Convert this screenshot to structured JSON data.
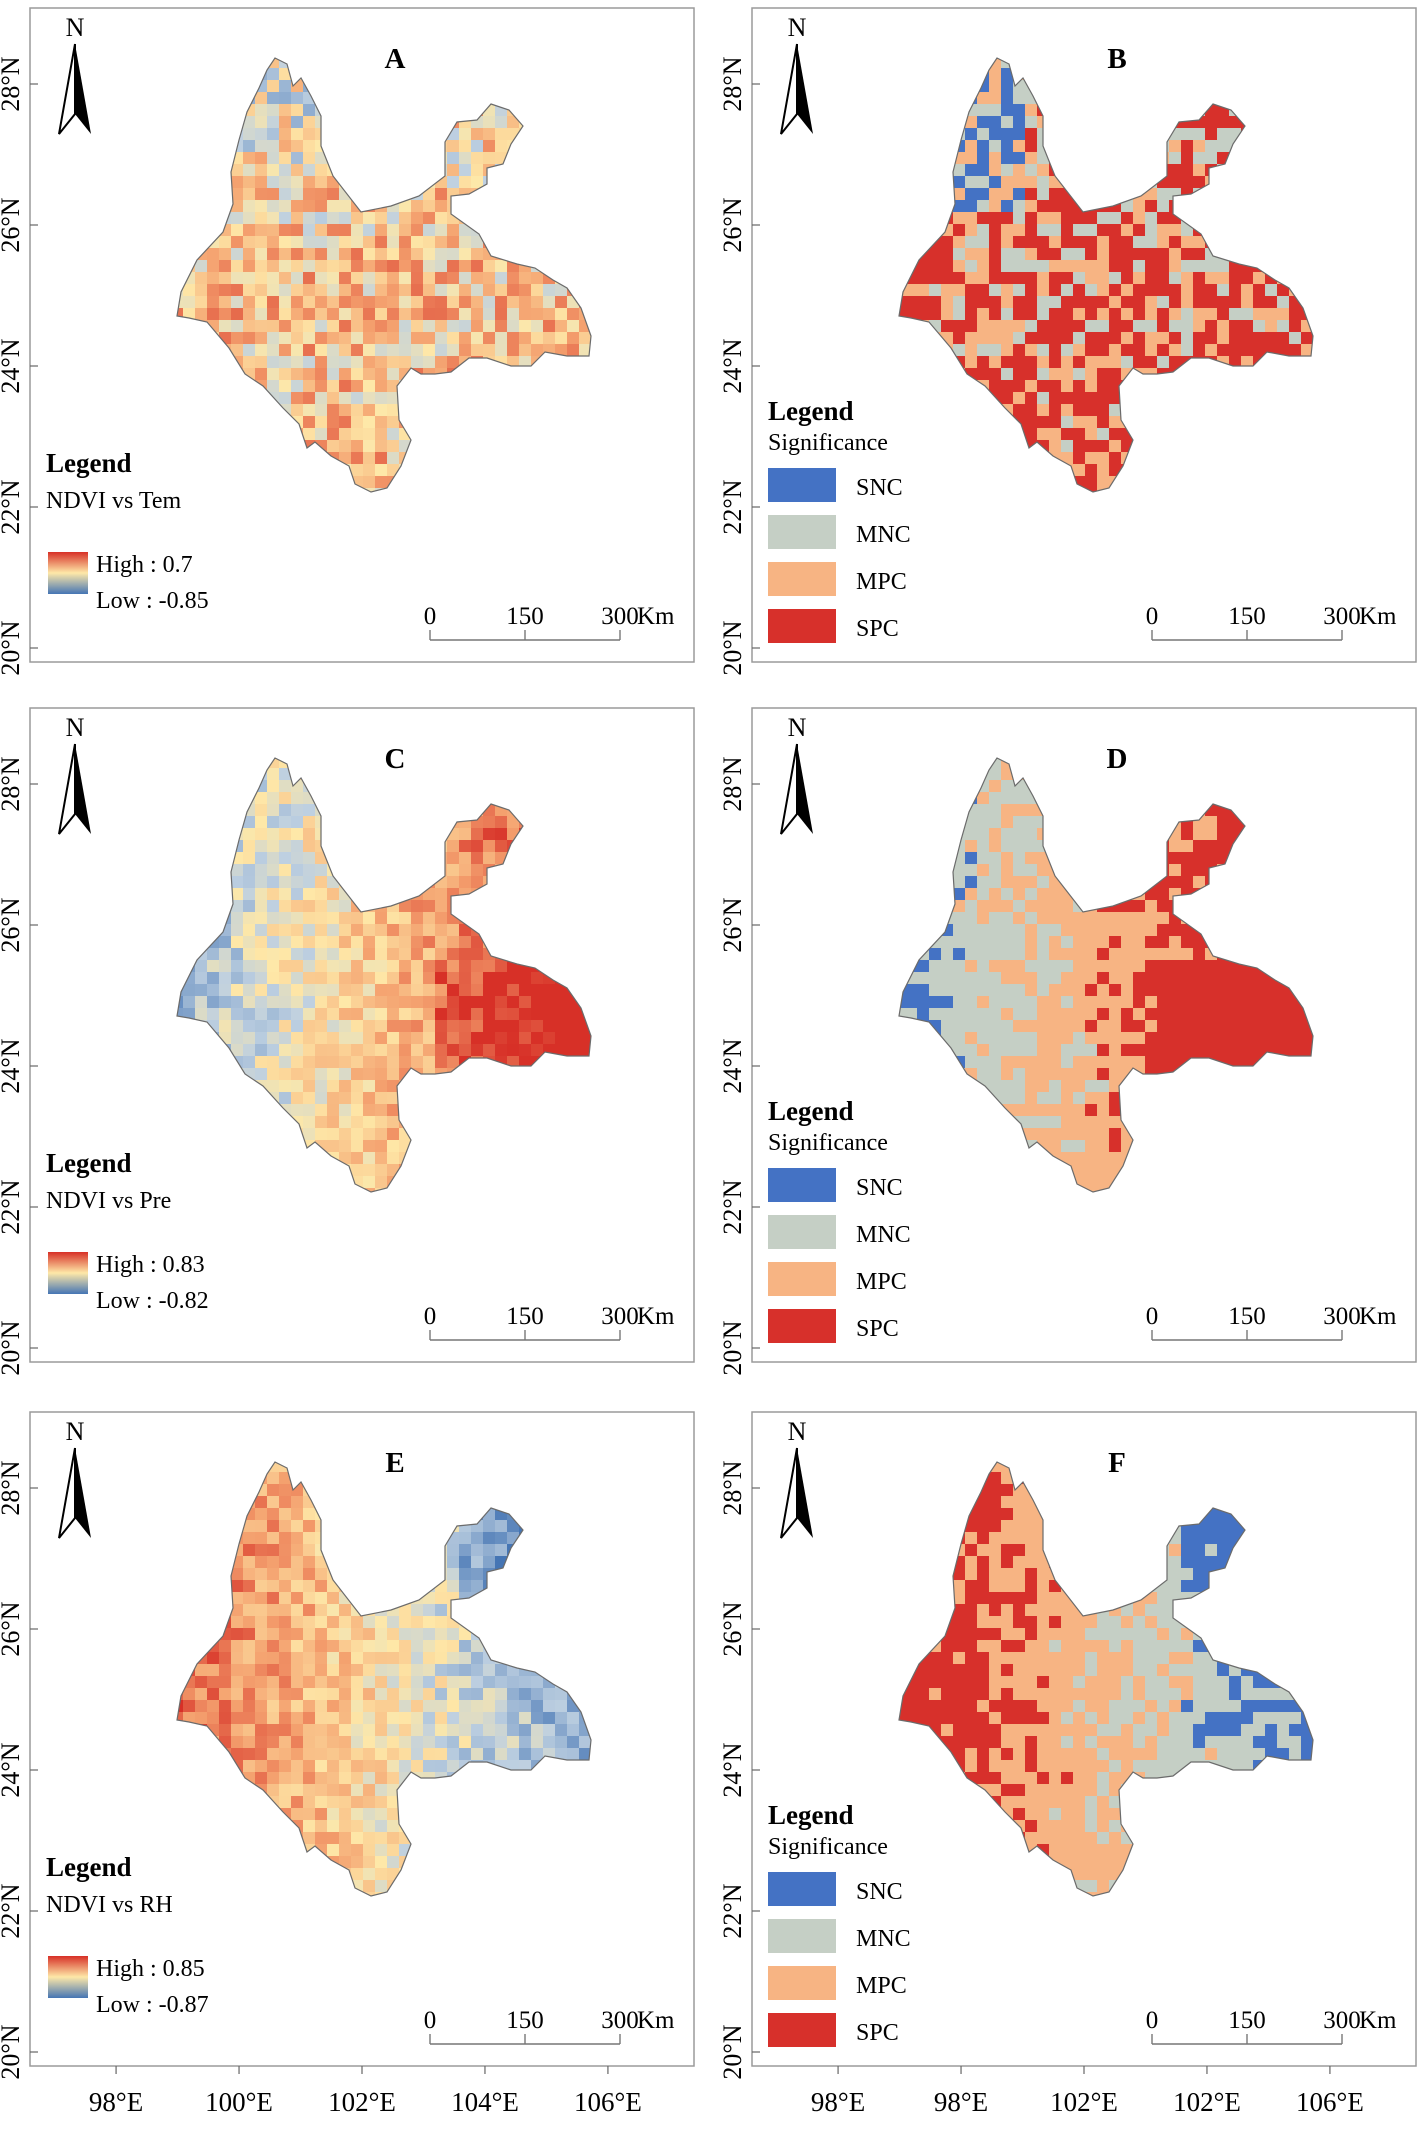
{
  "scale_bar": {
    "ticks": [
      "0",
      "150",
      "300"
    ],
    "unit": "Km"
  },
  "north_label": "N",
  "lat_labels": [
    "20°N",
    "22°N",
    "24°N",
    "26°N",
    "28°N"
  ],
  "x_axis": {
    "left_column": [
      "98°E",
      "100°E",
      "102°E",
      "104°E",
      "106°E"
    ],
    "right_column": [
      "98°E",
      "98°E",
      "102°E",
      "102°E",
      "106°E"
    ]
  },
  "colors": {
    "gradient_high": "#d73027",
    "gradient_mid": "#fee8a8",
    "gradient_low": "#4575b4",
    "SNC": "#4472c4",
    "MNC": "#c5cfc5",
    "MPC": "#f7b483",
    "SPC": "#d7302b"
  },
  "panels": [
    {
      "id": "A",
      "type": "gradient",
      "legend_title": "Legend",
      "subtitle": "NDVI vs Tem",
      "high": "High : 0.7",
      "low": "Low : -0.85",
      "dominant": "orange-mix"
    },
    {
      "id": "B",
      "type": "classes",
      "legend_title": "Legend",
      "subtitle": "Significance",
      "classes": [
        "SNC",
        "MNC",
        "MPC",
        "SPC"
      ],
      "dominant": "red-mix"
    },
    {
      "id": "C",
      "type": "gradient",
      "legend_title": "Legend",
      "subtitle": "NDVI vs Pre",
      "high": "High : 0.83",
      "low": "Low : -0.82",
      "dominant": "west-blue-east-red"
    },
    {
      "id": "D",
      "type": "classes",
      "legend_title": "Legend",
      "subtitle": "Significance",
      "classes": [
        "SNC",
        "MNC",
        "MPC",
        "SPC"
      ],
      "dominant": "west-blue-east-red"
    },
    {
      "id": "E",
      "type": "gradient",
      "legend_title": "Legend",
      "subtitle": "NDVI vs RH",
      "high": "High : 0.85",
      "low": "Low : -0.87",
      "dominant": "west-red-east-blue"
    },
    {
      "id": "F",
      "type": "classes",
      "legend_title": "Legend",
      "subtitle": "Significance",
      "classes": [
        "SNC",
        "MNC",
        "MPC",
        "SPC"
      ],
      "dominant": "west-red-east-blue"
    }
  ]
}
